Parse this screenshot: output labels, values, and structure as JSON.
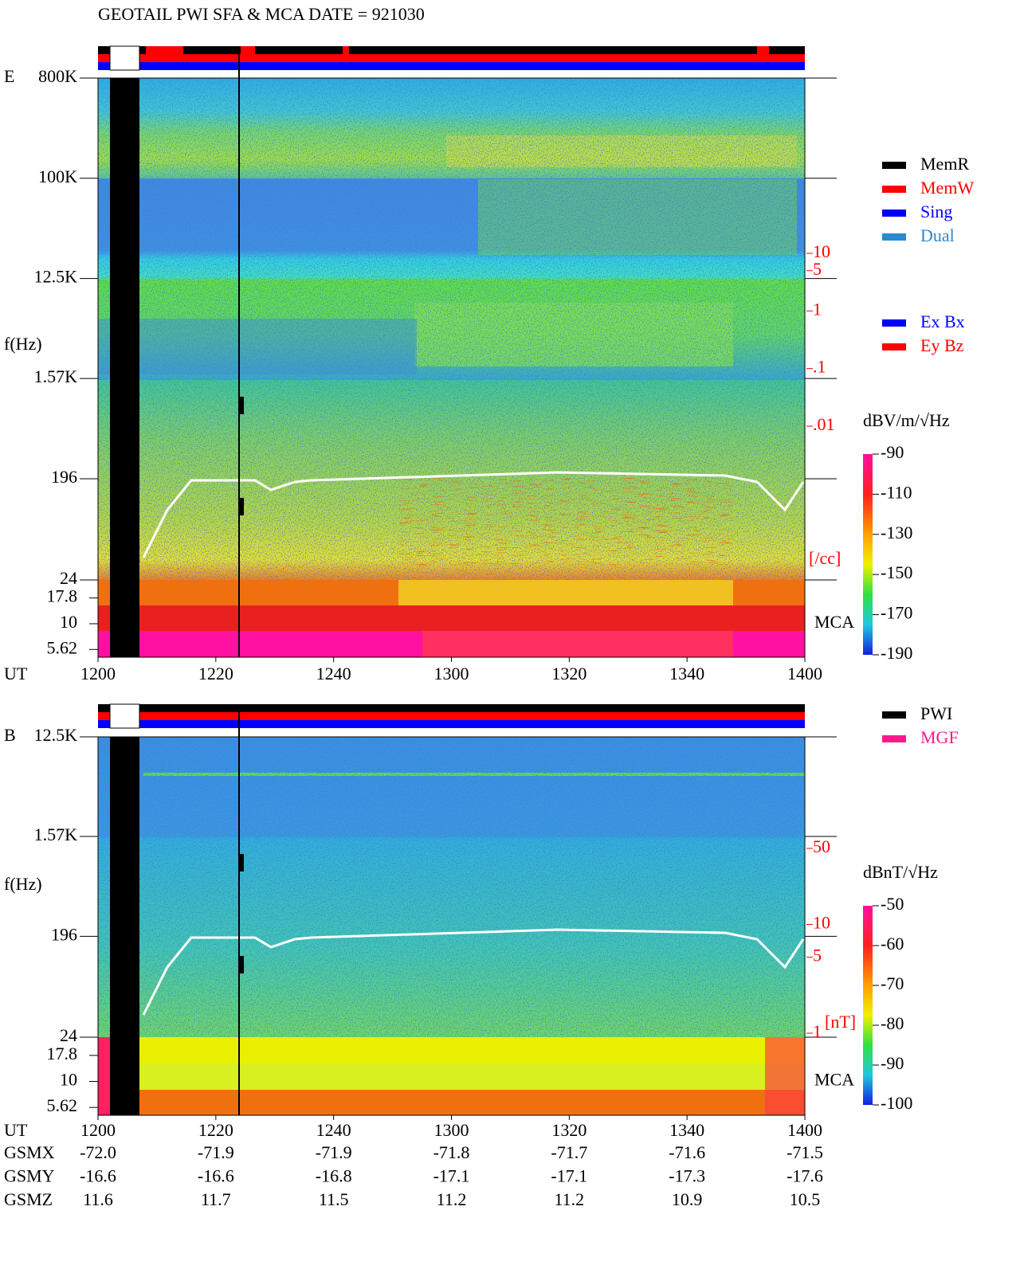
{
  "header": {
    "title": "GEOTAIL  PWI SFA & MCA   DATE = 921030"
  },
  "chart_data": [
    {
      "type": "spectrogram",
      "panel_label": "E",
      "y_label": "f(Hz)",
      "x_label": "UT",
      "log_y": true,
      "ylim": [
        24,
        800000
      ],
      "yticks": [
        {
          "value": 800000,
          "label": "800K"
        },
        {
          "value": 100000,
          "label": "100K"
        },
        {
          "value": 12500,
          "label": "12.5K"
        },
        {
          "value": 1570,
          "label": "1.57K"
        },
        196,
        24
      ],
      "mca_label": "MCA",
      "mca_ticks": [
        17.8,
        10,
        5.62
      ],
      "xlim": [
        1200,
        1400
      ],
      "xticks": [
        1200,
        1220,
        1240,
        1300,
        1320,
        1340,
        1400
      ],
      "colorbar": {
        "label": "dBV/m/√Hz",
        "lim": [
          -190,
          -90
        ],
        "ticks": [
          -90,
          -110,
          -130,
          -150,
          -170,
          -190
        ]
      },
      "side_scale": {
        "label": "[/cc]",
        "color": "#ff0000",
        "log": true,
        "lim": [
          0.01,
          10
        ],
        "ticks": [
          10,
          5,
          1,
          {
            "value": 0.1,
            "label": ".1"
          },
          {
            "value": 0.01,
            "label": ".01"
          }
        ]
      },
      "legend": [
        {
          "name": "MemR",
          "color": "#000000"
        },
        {
          "name": "MemW",
          "color": "#ff0000"
        },
        {
          "name": "Sing",
          "color": "#0000ff"
        },
        {
          "name": "Dual",
          "color": "#2a8ad0"
        }
      ],
      "legend2": [
        {
          "name": "Ex Bx",
          "color": "#0000ff"
        },
        {
          "name": "Ey Bz",
          "color": "#ff0000"
        }
      ]
    },
    {
      "type": "spectrogram",
      "panel_label": "B",
      "y_label": "f(Hz)",
      "x_label": "UT",
      "log_y": true,
      "ylim": [
        24,
        12500
      ],
      "yticks": [
        {
          "value": 12500,
          "label": "12.5K"
        },
        {
          "value": 1570,
          "label": "1.57K"
        },
        196,
        24
      ],
      "mca_label": "MCA",
      "mca_ticks": [
        17.8,
        10,
        5.62
      ],
      "xlim": [
        1200,
        1400
      ],
      "xticks": [
        1200,
        1220,
        1240,
        1300,
        1320,
        1340,
        1400
      ],
      "colorbar": {
        "label": "dBnT/√Hz",
        "lim": [
          -100,
          -50
        ],
        "ticks": [
          -50,
          -60,
          -70,
          -80,
          -90,
          -100
        ]
      },
      "side_scale": {
        "label": "[nT]",
        "color": "#ff0000",
        "log": true,
        "lim": [
          1,
          50
        ],
        "ticks": [
          50,
          10,
          5,
          1
        ]
      },
      "legend": [
        {
          "name": "PWI",
          "color": "#000000"
        },
        {
          "name": "MGF",
          "color": "#ff1a8c"
        }
      ]
    }
  ],
  "orbit": {
    "rows": [
      {
        "name": "GSMX",
        "values": [
          "-72.0",
          "-71.9",
          "-71.9",
          "-71.8",
          "-71.7",
          "-71.6",
          "-71.5"
        ]
      },
      {
        "name": "GSMY",
        "values": [
          "-16.6",
          "-16.6",
          "-16.8",
          "-17.1",
          "-17.1",
          "-17.3",
          "-17.6"
        ]
      },
      {
        "name": "GSMZ",
        "values": [
          "11.6",
          "11.7",
          "11.5",
          "11.2",
          "11.2",
          "10.9",
          "10.5"
        ]
      }
    ]
  }
}
